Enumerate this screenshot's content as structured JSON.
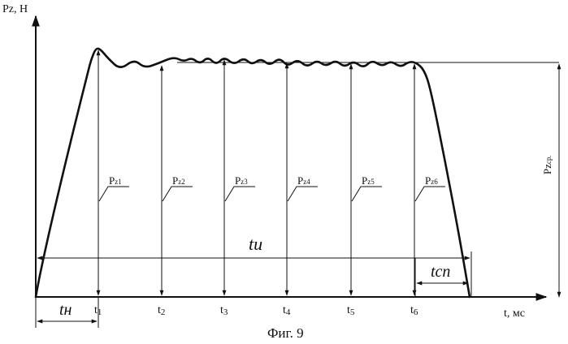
{
  "axes": {
    "y_label": "Pz, Н",
    "x_label": "t, мс"
  },
  "time_marks": [
    "t1",
    "t2",
    "t3",
    "t4",
    "t5",
    "t6"
  ],
  "time_mark_subs": [
    "1",
    "2",
    "3",
    "4",
    "5",
    "6"
  ],
  "force_labels": [
    "Pz1",
    "Pz2",
    "Pz3",
    "Pz4",
    "Pz5",
    "Pz6"
  ],
  "force_label_main": "P",
  "force_label_subs": [
    "z1",
    "z2",
    "z3",
    "z4",
    "z5",
    "z6"
  ],
  "average_label_main": "Pz",
  "average_label_sub": "ср.",
  "intervals": {
    "t_i": "tи",
    "t_n": "tн",
    "t_sp": "tсп"
  },
  "caption": "Фиг. 9"
}
